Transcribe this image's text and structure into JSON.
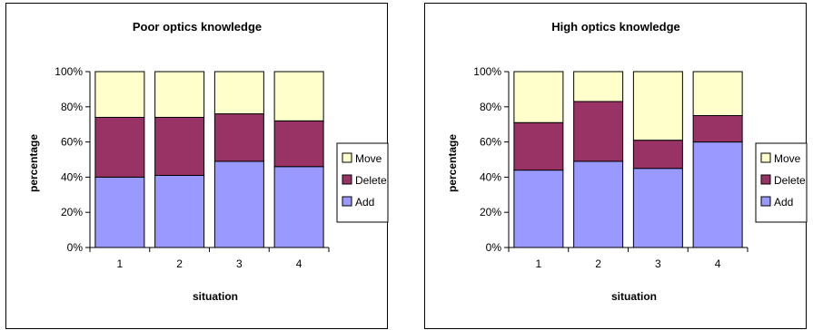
{
  "chart_data": [
    {
      "type": "bar",
      "stacked": true,
      "stacked_percent": true,
      "title": "Poor optics knowledge",
      "xlabel": "situation",
      "ylabel": "percentage",
      "categories": [
        "1",
        "2",
        "3",
        "4"
      ],
      "ylim": [
        0,
        100
      ],
      "yticks": [
        "0%",
        "20%",
        "40%",
        "60%",
        "80%",
        "100%"
      ],
      "grid": false,
      "legend_position": "right",
      "series": [
        {
          "name": "Add",
          "color": "#9999ff",
          "values": [
            40,
            41,
            49,
            46
          ]
        },
        {
          "name": "Delete",
          "color": "#993366",
          "values": [
            34,
            33,
            27,
            26
          ]
        },
        {
          "name": "Move",
          "color": "#ffffcc",
          "values": [
            26,
            26,
            24,
            28
          ]
        }
      ]
    },
    {
      "type": "bar",
      "stacked": true,
      "stacked_percent": true,
      "title": "High optics knowledge",
      "xlabel": "situation",
      "ylabel": "percentage",
      "categories": [
        "1",
        "2",
        "3",
        "4"
      ],
      "ylim": [
        0,
        100
      ],
      "yticks": [
        "0%",
        "20%",
        "40%",
        "60%",
        "80%",
        "100%"
      ],
      "grid": false,
      "legend_position": "right",
      "series": [
        {
          "name": "Add",
          "color": "#9999ff",
          "values": [
            44,
            49,
            45,
            60
          ]
        },
        {
          "name": "Delete",
          "color": "#993366",
          "values": [
            27,
            34,
            16,
            15
          ]
        },
        {
          "name": "Move",
          "color": "#ffffcc",
          "values": [
            29,
            17,
            39,
            25
          ]
        }
      ]
    }
  ]
}
